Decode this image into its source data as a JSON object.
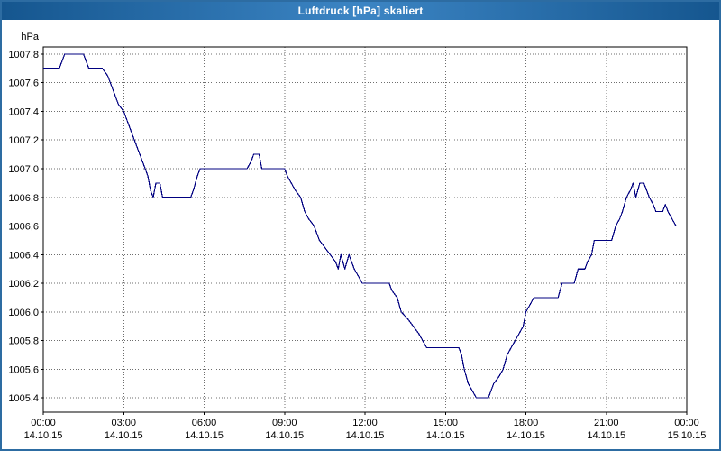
{
  "window": {
    "title": "Luftdruck [hPa] skaliert"
  },
  "colors": {
    "titlebar_edge": "#15568f",
    "titlebar_center": "#3c85c4",
    "window_border": "#2d6ca2",
    "line": "#000080",
    "grid": "#6e6e6e",
    "background": "#ffffff"
  },
  "chart_data": {
    "type": "line",
    "title": "Luftdruck [hPa] skaliert",
    "ylabel": "hPa",
    "xlabel": "",
    "grid": true,
    "legend": "none",
    "line_color": "#000080",
    "xlim": [
      0,
      24
    ],
    "ylim": [
      1005.3,
      1007.85
    ],
    "y_ticks": [
      {
        "value": 1007.8,
        "label": "1007,8"
      },
      {
        "value": 1007.6,
        "label": "1007,6"
      },
      {
        "value": 1007.4,
        "label": "1007,4"
      },
      {
        "value": 1007.2,
        "label": "1007,2"
      },
      {
        "value": 1007.0,
        "label": "1007,0"
      },
      {
        "value": 1006.8,
        "label": "1006,8"
      },
      {
        "value": 1006.6,
        "label": "1006,6"
      },
      {
        "value": 1006.4,
        "label": "1006,4"
      },
      {
        "value": 1006.2,
        "label": "1006,2"
      },
      {
        "value": 1006.0,
        "label": "1006,0"
      },
      {
        "value": 1005.8,
        "label": "1005,8"
      },
      {
        "value": 1005.6,
        "label": "1005,6"
      },
      {
        "value": 1005.4,
        "label": "1005,4"
      }
    ],
    "x_ticks": [
      {
        "value": 0,
        "time": "00:00",
        "date": "14.10.15"
      },
      {
        "value": 3,
        "time": "03:00",
        "date": "14.10.15"
      },
      {
        "value": 6,
        "time": "06:00",
        "date": "14.10.15"
      },
      {
        "value": 9,
        "time": "09:00",
        "date": "14.10.15"
      },
      {
        "value": 12,
        "time": "12:00",
        "date": "14.10.15"
      },
      {
        "value": 15,
        "time": "15:00",
        "date": "14.10.15"
      },
      {
        "value": 18,
        "time": "18:00",
        "date": "14.10.15"
      },
      {
        "value": 21,
        "time": "21:00",
        "date": "14.10.15"
      },
      {
        "value": 24,
        "time": "00:00",
        "date": "15.10.15"
      }
    ],
    "series": [
      {
        "name": "Luftdruck",
        "points": [
          [
            0.0,
            1007.7
          ],
          [
            0.6,
            1007.7
          ],
          [
            0.8,
            1007.8
          ],
          [
            1.5,
            1007.8
          ],
          [
            1.7,
            1007.7
          ],
          [
            2.2,
            1007.7
          ],
          [
            2.4,
            1007.65
          ],
          [
            2.6,
            1007.55
          ],
          [
            2.8,
            1007.45
          ],
          [
            3.0,
            1007.4
          ],
          [
            3.2,
            1007.3
          ],
          [
            3.4,
            1007.2
          ],
          [
            3.6,
            1007.1
          ],
          [
            3.8,
            1007.0
          ],
          [
            3.9,
            1006.95
          ],
          [
            4.0,
            1006.85
          ],
          [
            4.1,
            1006.8
          ],
          [
            4.2,
            1006.9
          ],
          [
            4.35,
            1006.9
          ],
          [
            4.45,
            1006.8
          ],
          [
            5.5,
            1006.8
          ],
          [
            5.6,
            1006.85
          ],
          [
            5.75,
            1006.95
          ],
          [
            5.85,
            1007.0
          ],
          [
            7.6,
            1007.0
          ],
          [
            7.75,
            1007.05
          ],
          [
            7.85,
            1007.1
          ],
          [
            8.05,
            1007.1
          ],
          [
            8.15,
            1007.0
          ],
          [
            9.0,
            1007.0
          ],
          [
            9.1,
            1006.95
          ],
          [
            9.25,
            1006.9
          ],
          [
            9.4,
            1006.85
          ],
          [
            9.6,
            1006.8
          ],
          [
            9.75,
            1006.7
          ],
          [
            9.9,
            1006.65
          ],
          [
            10.1,
            1006.6
          ],
          [
            10.3,
            1006.5
          ],
          [
            10.5,
            1006.45
          ],
          [
            10.7,
            1006.4
          ],
          [
            10.9,
            1006.35
          ],
          [
            11.0,
            1006.3
          ],
          [
            11.1,
            1006.4
          ],
          [
            11.25,
            1006.3
          ],
          [
            11.4,
            1006.4
          ],
          [
            11.5,
            1006.35
          ],
          [
            11.6,
            1006.3
          ],
          [
            11.75,
            1006.25
          ],
          [
            11.9,
            1006.2
          ],
          [
            12.9,
            1006.2
          ],
          [
            13.0,
            1006.15
          ],
          [
            13.2,
            1006.1
          ],
          [
            13.35,
            1006.0
          ],
          [
            13.6,
            1005.95
          ],
          [
            13.8,
            1005.9
          ],
          [
            14.0,
            1005.85
          ],
          [
            14.15,
            1005.8
          ],
          [
            14.3,
            1005.75
          ],
          [
            15.5,
            1005.75
          ],
          [
            15.6,
            1005.7
          ],
          [
            15.7,
            1005.6
          ],
          [
            15.85,
            1005.5
          ],
          [
            16.0,
            1005.45
          ],
          [
            16.15,
            1005.4
          ],
          [
            16.6,
            1005.4
          ],
          [
            16.7,
            1005.45
          ],
          [
            16.8,
            1005.5
          ],
          [
            17.0,
            1005.55
          ],
          [
            17.15,
            1005.6
          ],
          [
            17.3,
            1005.7
          ],
          [
            17.45,
            1005.75
          ],
          [
            17.6,
            1005.8
          ],
          [
            17.75,
            1005.85
          ],
          [
            17.9,
            1005.9
          ],
          [
            18.0,
            1006.0
          ],
          [
            18.15,
            1006.05
          ],
          [
            18.3,
            1006.1
          ],
          [
            19.2,
            1006.1
          ],
          [
            19.35,
            1006.2
          ],
          [
            19.8,
            1006.2
          ],
          [
            19.95,
            1006.3
          ],
          [
            20.2,
            1006.3
          ],
          [
            20.3,
            1006.35
          ],
          [
            20.45,
            1006.4
          ],
          [
            20.55,
            1006.5
          ],
          [
            21.2,
            1006.5
          ],
          [
            21.35,
            1006.6
          ],
          [
            21.5,
            1006.65
          ],
          [
            21.6,
            1006.7
          ],
          [
            21.75,
            1006.8
          ],
          [
            21.9,
            1006.85
          ],
          [
            22.0,
            1006.9
          ],
          [
            22.1,
            1006.8
          ],
          [
            22.25,
            1006.9
          ],
          [
            22.4,
            1006.9
          ],
          [
            22.5,
            1006.85
          ],
          [
            22.6,
            1006.8
          ],
          [
            22.75,
            1006.75
          ],
          [
            22.85,
            1006.7
          ],
          [
            23.1,
            1006.7
          ],
          [
            23.2,
            1006.75
          ],
          [
            23.3,
            1006.7
          ],
          [
            23.45,
            1006.65
          ],
          [
            23.6,
            1006.6
          ],
          [
            24.0,
            1006.6
          ]
        ]
      }
    ]
  }
}
